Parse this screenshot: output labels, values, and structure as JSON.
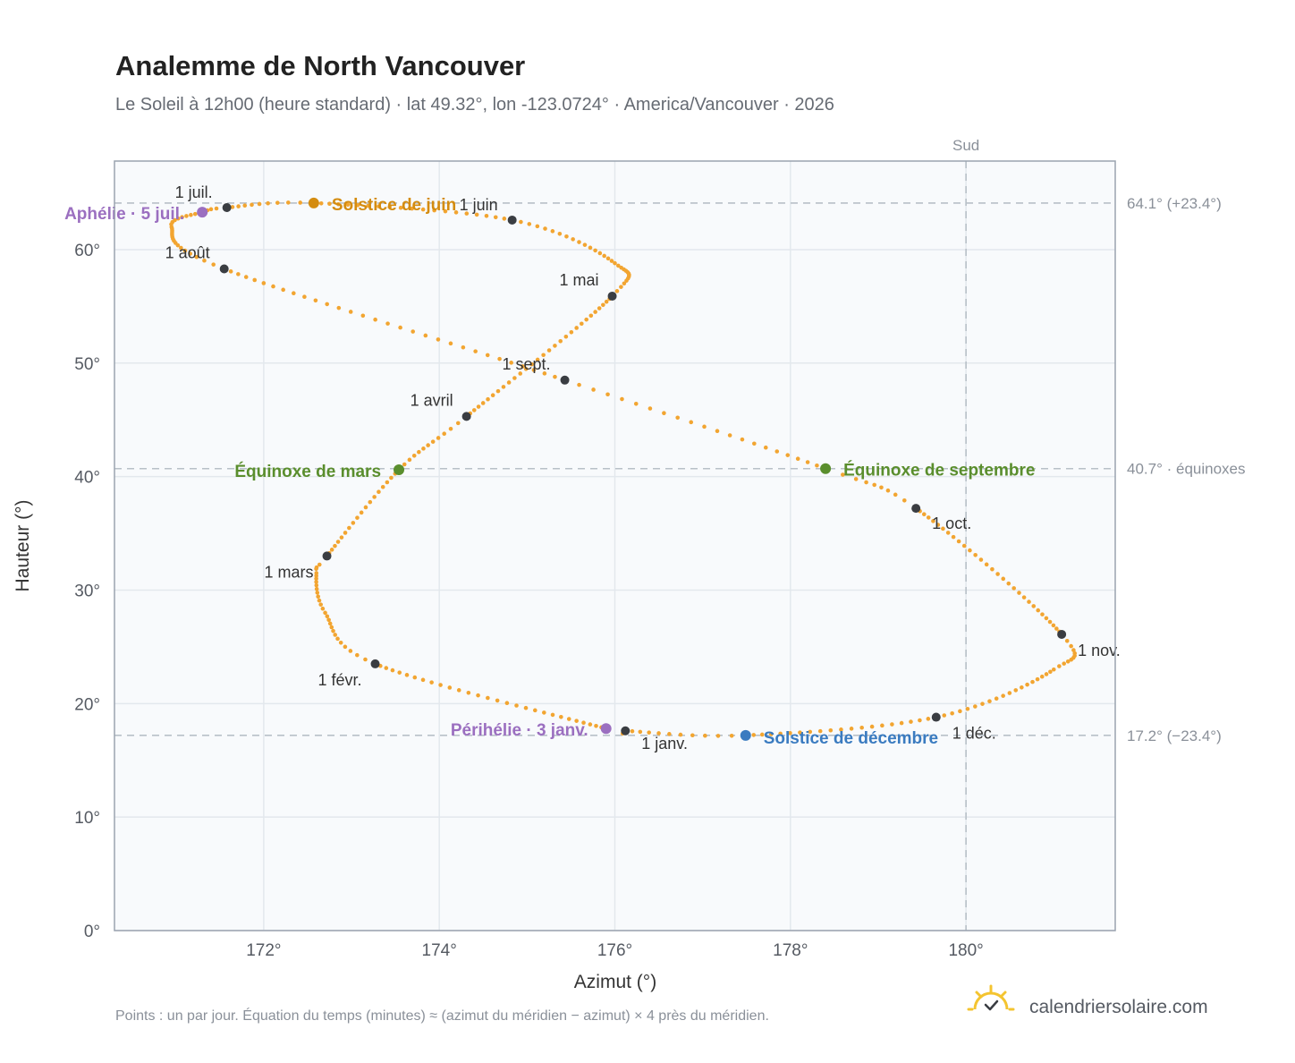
{
  "title": "Analemme de North Vancouver",
  "subtitle": "Le Soleil à 12h00 (heure standard) · lat 49.32°, lon -123.0724° · America/Vancouver · 2026",
  "footnote": "Points : un par jour. Équation du temps (minutes) ≈ (azimut du méridien − azimut) × 4 près du méridien.",
  "brand": "calendriersolaire.com",
  "colors": {
    "curve": "#f2a531",
    "month_marker": "#3a3d42",
    "solstice_june": "#d48c10",
    "solstice_december": "#3a7bc0",
    "equinox": "#5a8e2d",
    "apsis": "#9b6fc0",
    "reference_line": "#b8c0c8",
    "plot_background": "#f8fafc",
    "grid": "#e3e8ed",
    "frame": "#9aa3af",
    "brand_sun": "#f4c430"
  },
  "chart_data": {
    "type": "scatter",
    "xlabel": "Azimut (°)",
    "ylabel": "Hauteur (°)",
    "xlim": [
      170.3,
      181.7
    ],
    "ylim": [
      0,
      67.8
    ],
    "x_ticks": [
      172,
      174,
      176,
      178,
      180
    ],
    "x_tick_labels": [
      "172°",
      "174°",
      "176°",
      "178°",
      "180°"
    ],
    "y_ticks": [
      0,
      10,
      20,
      30,
      40,
      50,
      60
    ],
    "y_tick_labels": [
      "0°",
      "10°",
      "20°",
      "30°",
      "40°",
      "50°",
      "60°"
    ],
    "grid": true,
    "meridian": {
      "azimuth": 180,
      "label": "Sud"
    },
    "reference_lines": [
      {
        "altitude": 64.1,
        "label": "64.1° (+23.4°)"
      },
      {
        "altitude": 40.7,
        "label": "40.7° · équinoxes"
      },
      {
        "altitude": 17.2,
        "label": "17.2° (−23.4°)"
      }
    ],
    "months": [
      {
        "label": "1 janv.",
        "azimuth": 176.12,
        "altitude": 17.6
      },
      {
        "label": "1 févr.",
        "azimuth": 173.27,
        "altitude": 23.5
      },
      {
        "label": "1 mars",
        "azimuth": 172.72,
        "altitude": 33.0
      },
      {
        "label": "1 avril",
        "azimuth": 174.31,
        "altitude": 45.3
      },
      {
        "label": "1 mai",
        "azimuth": 175.97,
        "altitude": 55.9
      },
      {
        "label": "1 juin",
        "azimuth": 174.83,
        "altitude": 62.6
      },
      {
        "label": "1 juil.",
        "azimuth": 171.58,
        "altitude": 63.7
      },
      {
        "label": "1 août",
        "azimuth": 171.55,
        "altitude": 58.3
      },
      {
        "label": "1 sept.",
        "azimuth": 175.43,
        "altitude": 48.5
      },
      {
        "label": "1 oct.",
        "azimuth": 179.43,
        "altitude": 37.2
      },
      {
        "label": "1 nov.",
        "azimuth": 181.09,
        "altitude": 26.1
      },
      {
        "label": "1 déc.",
        "azimuth": 179.66,
        "altitude": 18.8
      }
    ],
    "events": [
      {
        "label": "Solstice de juin",
        "azimuth": 172.57,
        "altitude": 64.1,
        "kind": "solstice_june"
      },
      {
        "label": "Solstice de décembre",
        "azimuth": 177.49,
        "altitude": 17.2,
        "kind": "solstice_december"
      },
      {
        "label": "Équinoxe de mars",
        "azimuth": 173.54,
        "altitude": 40.6,
        "kind": "equinox"
      },
      {
        "label": "Équinoxe de septembre",
        "azimuth": 178.4,
        "altitude": 40.7,
        "kind": "equinox"
      },
      {
        "label": "Aphélie · 5 juil.",
        "azimuth": 171.3,
        "altitude": 63.3,
        "kind": "apsis"
      },
      {
        "label": "Périhélie · 3 janv.",
        "azimuth": 175.9,
        "altitude": 17.8,
        "kind": "apsis"
      }
    ]
  }
}
